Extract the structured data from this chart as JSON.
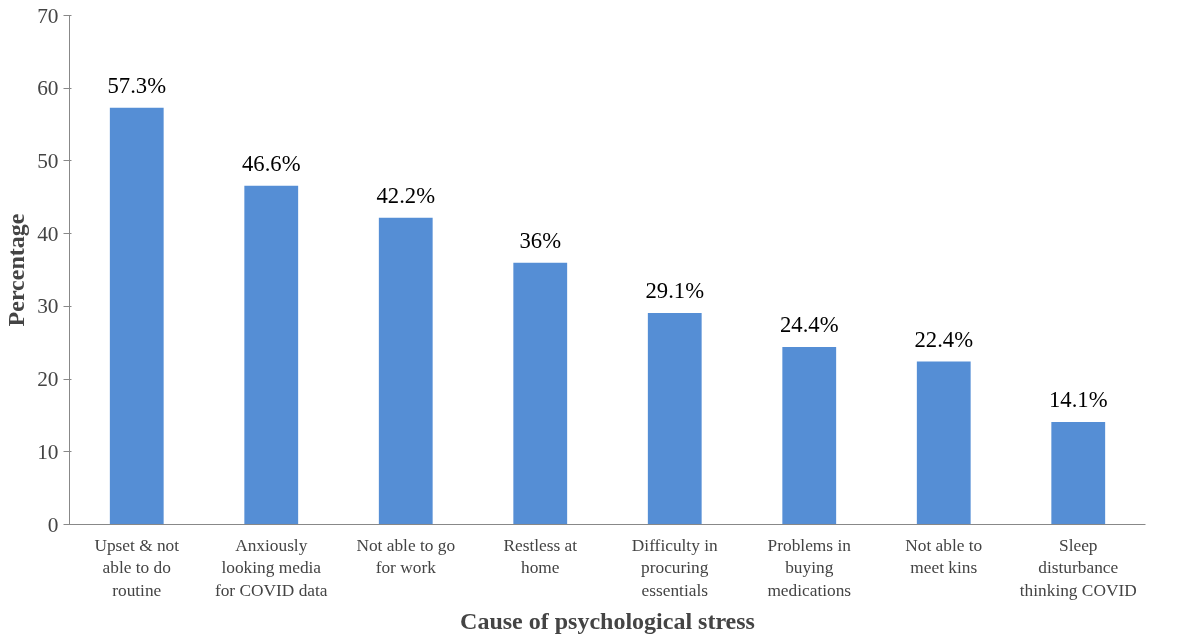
{
  "chart_data": {
    "type": "bar",
    "xlabel": "Cause of psychological stress",
    "ylabel": "Percentage",
    "categories": [
      "Upset & not able to do routine",
      "Anxiously looking media for COVID data",
      "Not able to go for work",
      "Restless at home",
      "Difficulty in procuring essentials",
      "Problems in buying medications",
      "Not able to meet kins",
      "Sleep disturbance thinking COVID"
    ],
    "values": [
      57.3,
      46.6,
      42.2,
      36,
      29.1,
      24.4,
      22.4,
      14.1
    ],
    "value_labels": [
      "57.3%",
      "46.6%",
      "42.2%",
      "36%",
      "29.1%",
      "24.4%",
      "22.4%",
      "14.1%"
    ],
    "color": "#558ed5",
    "ylim": [
      0,
      70
    ],
    "yticks": [
      0,
      10,
      20,
      30,
      40,
      50,
      60,
      70
    ],
    "grid": false
  }
}
